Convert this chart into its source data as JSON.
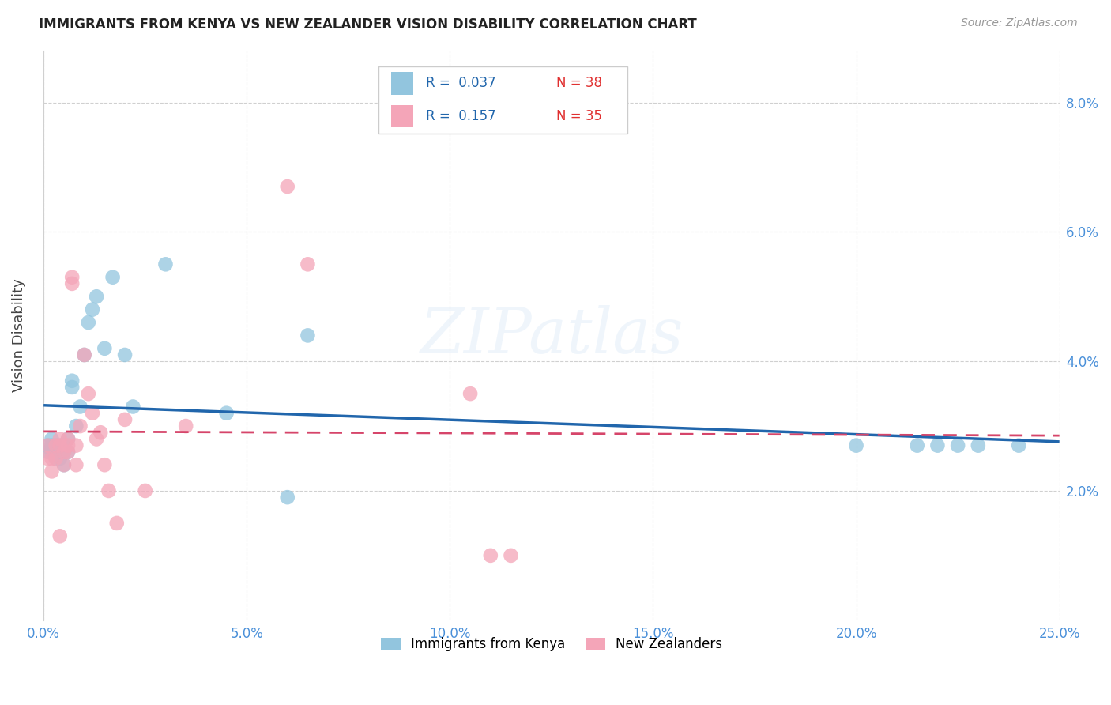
{
  "title": "IMMIGRANTS FROM KENYA VS NEW ZEALANDER VISION DISABILITY CORRELATION CHART",
  "source": "Source: ZipAtlas.com",
  "ylabel": "Vision Disability",
  "xlim": [
    0.0,
    0.25
  ],
  "ylim": [
    0.0,
    0.088
  ],
  "x_ticks": [
    0.0,
    0.05,
    0.1,
    0.15,
    0.2,
    0.25
  ],
  "x_tick_labels": [
    "0.0%",
    "5.0%",
    "10.0%",
    "15.0%",
    "20.0%",
    "25.0%"
  ],
  "y_ticks": [
    0.02,
    0.04,
    0.06,
    0.08
  ],
  "y_tick_labels": [
    "2.0%",
    "4.0%",
    "6.0%",
    "8.0%"
  ],
  "legend_R1": "R =  0.037",
  "legend_N1": "N = 38",
  "legend_R2": "R =  0.157",
  "legend_N2": "N = 35",
  "color_blue": "#92c5de",
  "color_blue_line": "#2166ac",
  "color_pink": "#f4a5b8",
  "color_pink_dashed": "#d6456a",
  "color_tick": "#4a90d9",
  "background_color": "#ffffff",
  "grid_color": "#d0d0d0",
  "kenya_x": [
    0.001,
    0.001,
    0.002,
    0.002,
    0.002,
    0.003,
    0.003,
    0.003,
    0.004,
    0.004,
    0.004,
    0.005,
    0.005,
    0.005,
    0.006,
    0.006,
    0.007,
    0.007,
    0.008,
    0.009,
    0.01,
    0.011,
    0.012,
    0.013,
    0.015,
    0.017,
    0.02,
    0.022,
    0.03,
    0.045,
    0.06,
    0.065,
    0.2,
    0.215,
    0.22,
    0.225,
    0.23,
    0.24
  ],
  "kenya_y": [
    0.027,
    0.026,
    0.028,
    0.027,
    0.026,
    0.027,
    0.026,
    0.025,
    0.027,
    0.026,
    0.025,
    0.027,
    0.026,
    0.024,
    0.028,
    0.026,
    0.036,
    0.037,
    0.03,
    0.033,
    0.041,
    0.046,
    0.048,
    0.05,
    0.042,
    0.053,
    0.041,
    0.033,
    0.055,
    0.032,
    0.019,
    0.044,
    0.027,
    0.027,
    0.027,
    0.027,
    0.027,
    0.027
  ],
  "nz_x": [
    0.001,
    0.001,
    0.002,
    0.002,
    0.003,
    0.003,
    0.004,
    0.004,
    0.004,
    0.005,
    0.005,
    0.006,
    0.006,
    0.006,
    0.007,
    0.007,
    0.008,
    0.008,
    0.009,
    0.01,
    0.011,
    0.012,
    0.013,
    0.014,
    0.015,
    0.016,
    0.018,
    0.02,
    0.025,
    0.035,
    0.06,
    0.065,
    0.105,
    0.11,
    0.115
  ],
  "nz_y": [
    0.025,
    0.027,
    0.025,
    0.023,
    0.027,
    0.025,
    0.028,
    0.027,
    0.013,
    0.026,
    0.024,
    0.027,
    0.028,
    0.026,
    0.053,
    0.052,
    0.027,
    0.024,
    0.03,
    0.041,
    0.035,
    0.032,
    0.028,
    0.029,
    0.024,
    0.02,
    0.015,
    0.031,
    0.02,
    0.03,
    0.067,
    0.055,
    0.035,
    0.01,
    0.01
  ]
}
